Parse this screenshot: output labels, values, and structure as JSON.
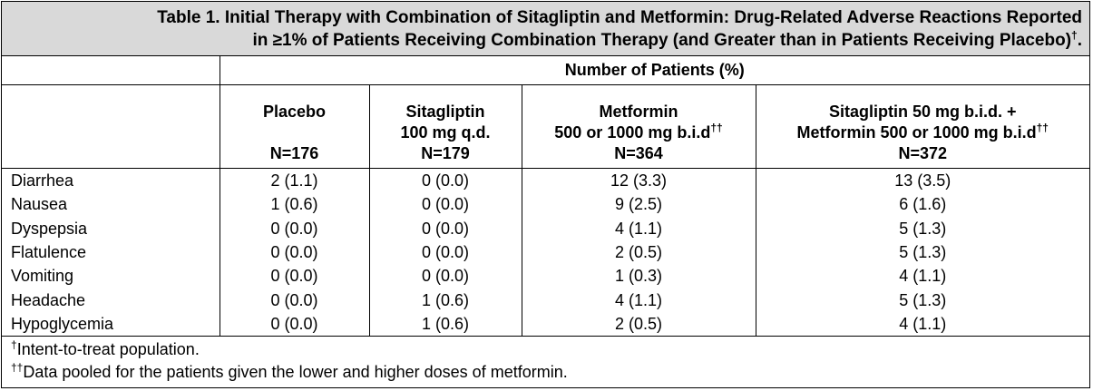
{
  "title": {
    "line1": "Table 1. Initial Therapy with Combination of Sitagliptin and Metformin: Drug-Related Adverse Reactions Reported",
    "line2": "in ≥1% of Patients Receiving Combination Therapy (and Greater than in Patients Receiving Placebo)",
    "line2_mark": "†",
    "line2_end": "."
  },
  "header": {
    "group": "Number of Patients (%)",
    "columns": [
      {
        "line1": "Placebo",
        "line2": "",
        "mark": "",
        "n": "N=176"
      },
      {
        "line1": "Sitagliptin",
        "line2": "100 mg q.d.",
        "mark": "",
        "n": "N=179"
      },
      {
        "line1": "Metformin",
        "line2": "500 or 1000 mg b.i.d",
        "mark": "††",
        "n": "N=364"
      },
      {
        "line1": "Sitagliptin 50 mg b.i.d. +",
        "line2": "Metformin 500 or 1000 mg b.i.d",
        "mark": "††",
        "n": "N=372"
      }
    ]
  },
  "rows": [
    {
      "label": "Diarrhea",
      "values": [
        "2 (1.1)",
        "0 (0.0)",
        "12 (3.3)",
        "13 (3.5)"
      ]
    },
    {
      "label": "Nausea",
      "values": [
        "1 (0.6)",
        "0 (0.0)",
        "9 (2.5)",
        "6 (1.6)"
      ]
    },
    {
      "label": "Dyspepsia",
      "values": [
        "0 (0.0)",
        "0 (0.0)",
        "4 (1.1)",
        "5 (1.3)"
      ]
    },
    {
      "label": "Flatulence",
      "values": [
        "0 (0.0)",
        "0 (0.0)",
        "2 (0.5)",
        "5 (1.3)"
      ]
    },
    {
      "label": "Vomiting",
      "values": [
        "0 (0.0)",
        "0 (0.0)",
        "1 (0.3)",
        "4 (1.1)"
      ]
    },
    {
      "label": "Headache",
      "values": [
        "0 (0.0)",
        "1 (0.6)",
        "4 (1.1)",
        "5 (1.3)"
      ]
    },
    {
      "label": "Hypoglycemia",
      "values": [
        "0 (0.0)",
        "1 (0.6)",
        "2 (0.5)",
        "4 (1.1)"
      ]
    }
  ],
  "footnotes": [
    {
      "mark": "†",
      "text": "Intent-to-treat population."
    },
    {
      "mark": "††",
      "text": "Data pooled for the patients given the lower and higher doses of metformin."
    }
  ]
}
